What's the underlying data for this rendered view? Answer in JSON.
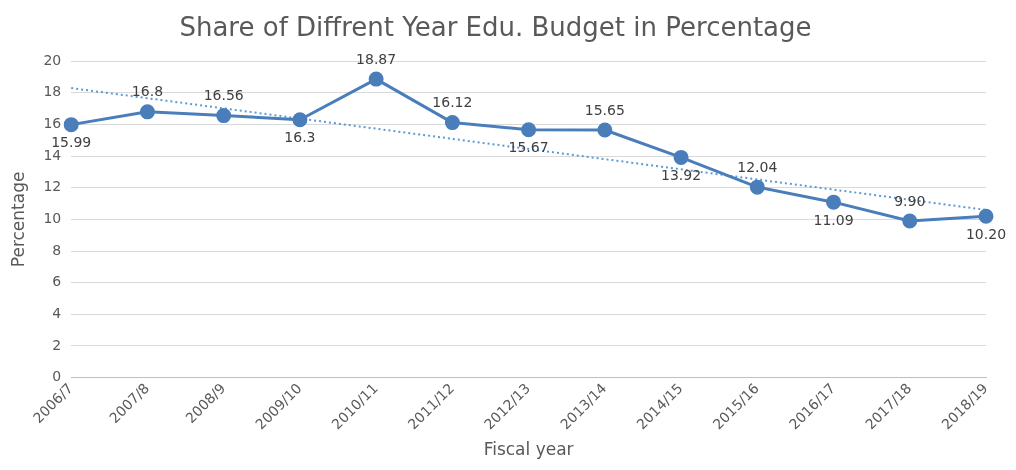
{
  "chart_data": {
    "type": "line",
    "title": "Share of Diffrent Year Edu. Budget in Percentage",
    "xlabel": "Fiscal year",
    "ylabel": "Percentage",
    "categories": [
      "2006/7",
      "2007/8",
      "2008/9",
      "2009/10",
      "2010/11",
      "2011/12",
      "2012/13",
      "2013/14",
      "2014/15",
      "2015/16",
      "2016/17",
      "2017/18",
      "2018/19"
    ],
    "series": [
      {
        "color": "#4a7ebb",
        "values": [
          15.99,
          16.8,
          16.56,
          16.3,
          18.87,
          16.12,
          15.67,
          15.65,
          13.92,
          12.04,
          11.09,
          9.9,
          10.2
        ],
        "value_labels": [
          "15.99",
          "16.8",
          "16.56",
          "16.3",
          "18.87",
          "16.12",
          "15.67",
          "15.65",
          "13.92",
          "12.04",
          "11.09",
          "9.90",
          "10.20"
        ],
        "marker": "circle",
        "line_style": "solid"
      },
      {
        "type": "line",
        "color": "#5b9bd5",
        "x": [
          "2006/7",
          "2018/19"
        ],
        "values": [
          18.3,
          10.6
        ],
        "marker": "none",
        "line_style": "dotted"
      }
    ],
    "ylim": [
      0,
      20
    ],
    "yticks": [
      0,
      2,
      4,
      6,
      8,
      10,
      12,
      14,
      16,
      18,
      20
    ],
    "grid": "y",
    "legend": false
  }
}
